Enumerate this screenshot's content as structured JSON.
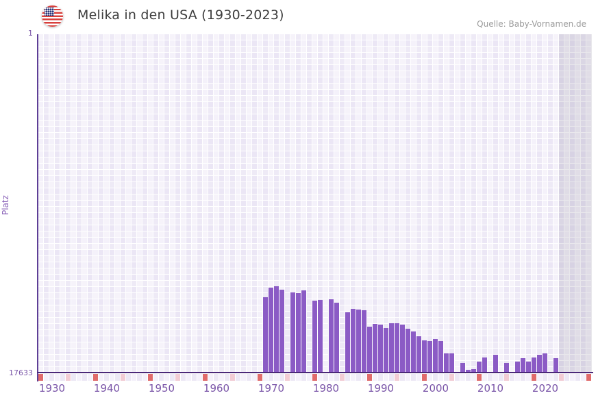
{
  "header": {
    "title": "Melika in den USA (1930-2023)",
    "source": "Quelle: Baby-Vornamen.de",
    "flag_icon": "us-flag-icon"
  },
  "chart_data": {
    "type": "bar",
    "title": "Melika in den USA (1930-2023)",
    "xlabel": "",
    "ylabel": "Platz",
    "y_axis": {
      "top_label": "1",
      "bottom_label": "17633",
      "min": 1,
      "max": 17633,
      "inverted": true
    },
    "x_axis": {
      "domain_start": 1928,
      "domain_end": 2028,
      "tick_labels": [
        "1930",
        "1940",
        "1950",
        "1960",
        "1970",
        "1980",
        "1990",
        "2000",
        "2010",
        "2020"
      ]
    },
    "legend": "none",
    "grid": "on",
    "series": [
      {
        "name": "Platz",
        "points": [
          {
            "year": 1969,
            "platz": 13700
          },
          {
            "year": 1970,
            "platz": 13200
          },
          {
            "year": 1971,
            "platz": 13150
          },
          {
            "year": 1972,
            "platz": 13300
          },
          {
            "year": 1974,
            "platz": 13450
          },
          {
            "year": 1975,
            "platz": 13500
          },
          {
            "year": 1976,
            "platz": 13350
          },
          {
            "year": 1978,
            "platz": 13900
          },
          {
            "year": 1979,
            "platz": 13850
          },
          {
            "year": 1981,
            "platz": 13800
          },
          {
            "year": 1982,
            "platz": 14000
          },
          {
            "year": 1984,
            "platz": 14500
          },
          {
            "year": 1985,
            "platz": 14300
          },
          {
            "year": 1986,
            "platz": 14350
          },
          {
            "year": 1987,
            "platz": 14400
          },
          {
            "year": 1988,
            "platz": 15250
          },
          {
            "year": 1989,
            "platz": 15100
          },
          {
            "year": 1990,
            "platz": 15150
          },
          {
            "year": 1991,
            "platz": 15300
          },
          {
            "year": 1992,
            "platz": 15050
          },
          {
            "year": 1993,
            "platz": 15050
          },
          {
            "year": 1994,
            "platz": 15150
          },
          {
            "year": 1995,
            "platz": 15350
          },
          {
            "year": 1996,
            "platz": 15500
          },
          {
            "year": 1997,
            "platz": 15750
          },
          {
            "year": 1998,
            "platz": 15950
          },
          {
            "year": 1999,
            "platz": 16000
          },
          {
            "year": 2000,
            "platz": 15900
          },
          {
            "year": 2001,
            "platz": 16000
          },
          {
            "year": 2002,
            "platz": 16650
          },
          {
            "year": 2003,
            "platz": 16650
          },
          {
            "year": 2005,
            "platz": 17150
          },
          {
            "year": 2006,
            "platz": 17500
          },
          {
            "year": 2007,
            "platz": 17450
          },
          {
            "year": 2008,
            "platz": 17050
          },
          {
            "year": 2009,
            "platz": 16850
          },
          {
            "year": 2011,
            "platz": 16700
          },
          {
            "year": 2013,
            "platz": 17150
          },
          {
            "year": 2015,
            "platz": 17050
          },
          {
            "year": 2016,
            "platz": 16900
          },
          {
            "year": 2017,
            "platz": 17050
          },
          {
            "year": 2018,
            "platz": 16850
          },
          {
            "year": 2019,
            "platz": 16700
          },
          {
            "year": 2020,
            "platz": 16650
          },
          {
            "year": 2022,
            "platz": 16900
          }
        ]
      }
    ],
    "tick_strip": {
      "dark_red_years": [
        1928,
        1938,
        1948,
        1958,
        1968,
        1978,
        1988,
        1998,
        2008,
        2018,
        2028
      ],
      "light_pink_years": [
        1933,
        1943,
        1953,
        1963,
        1973,
        1983,
        1993,
        2003,
        2013,
        2023
      ]
    },
    "shaded_region_years": {
      "start": 2023,
      "end": 2028
    },
    "colors": {
      "bar": "#8b5bc5",
      "axis_line": "#4a2878",
      "axis_text": "#7a55a8",
      "grid_cell": "#ebe6f5",
      "strip_dark_red": "#e06b6b",
      "strip_light_pink": "#f2ccd4",
      "strip_even": "#ece8f5",
      "strip_odd": "#f4f1fa",
      "shade": "rgba(98,95,120,0.14)"
    }
  }
}
